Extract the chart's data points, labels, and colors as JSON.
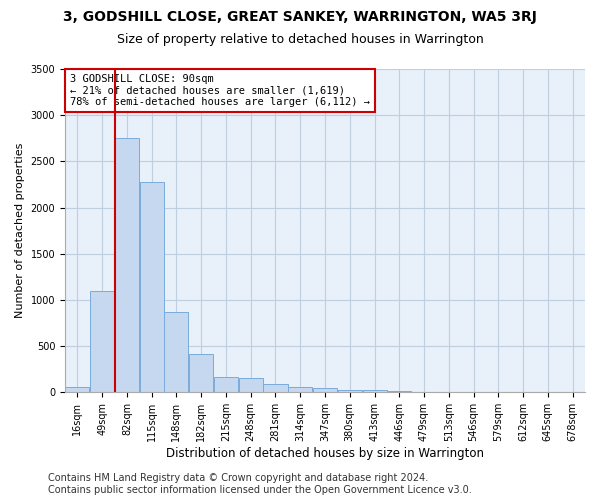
{
  "title": "3, GODSHILL CLOSE, GREAT SANKEY, WARRINGTON, WA5 3RJ",
  "subtitle": "Size of property relative to detached houses in Warrington",
  "xlabel": "Distribution of detached houses by size in Warrington",
  "ylabel": "Number of detached properties",
  "bar_color": "#c5d8f0",
  "bar_edge_color": "#7aabdc",
  "bg_color": "#e8f0fa",
  "grid_color": "#c0cfe0",
  "annotation_line_color": "#cc0000",
  "annotation_box_text": "3 GODSHILL CLOSE: 90sqm\n← 21% of detached houses are smaller (1,619)\n78% of semi-detached houses are larger (6,112) →",
  "annotation_box_color": "#ffffff",
  "annotation_box_edge_color": "#cc0000",
  "categories": [
    "16sqm",
    "49sqm",
    "82sqm",
    "115sqm",
    "148sqm",
    "182sqm",
    "215sqm",
    "248sqm",
    "281sqm",
    "314sqm",
    "347sqm",
    "380sqm",
    "413sqm",
    "446sqm",
    "479sqm",
    "513sqm",
    "546sqm",
    "579sqm",
    "612sqm",
    "645sqm",
    "678sqm"
  ],
  "values": [
    55,
    1100,
    2750,
    2280,
    870,
    420,
    170,
    160,
    90,
    55,
    45,
    30,
    20,
    10,
    8,
    5,
    3,
    2,
    1,
    1,
    1
  ],
  "ylim": [
    0,
    3500
  ],
  "yticks": [
    0,
    500,
    1000,
    1500,
    2000,
    2500,
    3000,
    3500
  ],
  "footer": "Contains HM Land Registry data © Crown copyright and database right 2024.\nContains public sector information licensed under the Open Government Licence v3.0.",
  "title_fontsize": 10,
  "subtitle_fontsize": 9,
  "axis_fontsize": 8,
  "tick_fontsize": 7,
  "footer_fontsize": 7
}
